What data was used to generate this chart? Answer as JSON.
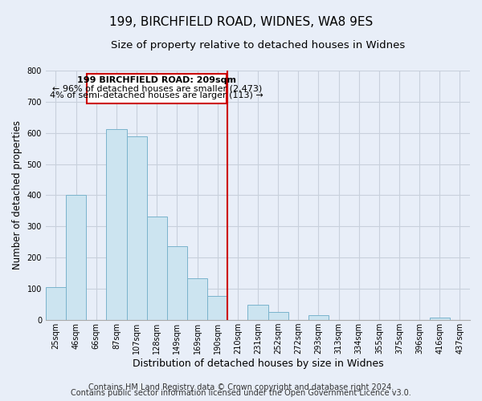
{
  "title": "199, BIRCHFIELD ROAD, WIDNES, WA8 9ES",
  "subtitle": "Size of property relative to detached houses in Widnes",
  "xlabel": "Distribution of detached houses by size in Widnes",
  "ylabel": "Number of detached properties",
  "bin_labels": [
    "25sqm",
    "46sqm",
    "66sqm",
    "87sqm",
    "107sqm",
    "128sqm",
    "149sqm",
    "169sqm",
    "190sqm",
    "210sqm",
    "231sqm",
    "252sqm",
    "272sqm",
    "293sqm",
    "313sqm",
    "334sqm",
    "355sqm",
    "375sqm",
    "396sqm",
    "416sqm",
    "437sqm"
  ],
  "bar_heights": [
    105,
    400,
    0,
    613,
    590,
    332,
    237,
    135,
    77,
    0,
    48,
    25,
    0,
    15,
    0,
    0,
    0,
    0,
    0,
    8,
    0
  ],
  "bar_color": "#cce4f0",
  "bar_edge_color": "#7ab3cc",
  "vline_x_index": 9,
  "vline_color": "#cc0000",
  "annotation_lines": [
    "199 BIRCHFIELD ROAD: 209sqm",
    "← 96% of detached houses are smaller (2,473)",
    "4% of semi-detached houses are larger (113) →"
  ],
  "annotation_box_color": "#ffffff",
  "annotation_box_edge_color": "#cc0000",
  "ylim": [
    0,
    800
  ],
  "footer_line1": "Contains HM Land Registry data © Crown copyright and database right 2024.",
  "footer_line2": "Contains public sector information licensed under the Open Government Licence v3.0.",
  "background_color": "#e8eef8",
  "plot_background_color": "#e8eef8",
  "grid_color": "#c8d0dc",
  "title_fontsize": 11,
  "subtitle_fontsize": 9.5,
  "ylabel_fontsize": 8.5,
  "xlabel_fontsize": 9,
  "tick_fontsize": 7,
  "footer_fontsize": 7,
  "ann_fontsize": 8
}
